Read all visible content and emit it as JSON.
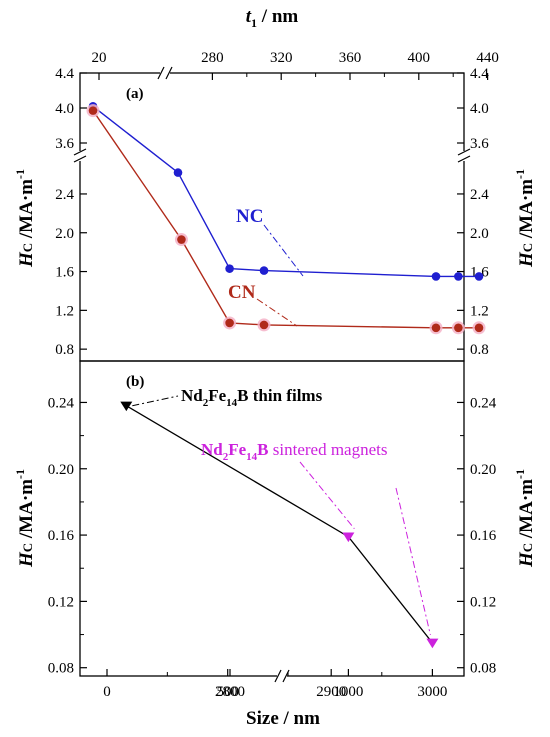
{
  "chart_data": [
    {
      "panel_label": "(a)",
      "type": "line",
      "top_axis": {
        "label_main": "t",
        "label_sub": "1",
        "label_rest": " / nm",
        "ticks": [
          "20",
          "280",
          "320",
          "360",
          "400",
          "440"
        ]
      },
      "y_axis": {
        "label_main": "H",
        "label_sub": "C",
        "label_rest": " /MA·m",
        "label_sup": "-1",
        "ticks_upper": [
          "4.4",
          "4.0",
          "3.6"
        ],
        "ticks_lower": [
          "2.4",
          "2.0",
          "1.6",
          "1.2",
          "0.8"
        ],
        "range_lower": [
          0.7,
          2.75
        ],
        "range_upper": [
          3.45,
          4.4
        ]
      },
      "series": [
        {
          "name": "NC",
          "color": "#1f1fd0",
          "points": [
            {
              "x": 0,
              "y": 4.02
            },
            {
              "x": 260,
              "y": 2.62
            },
            {
              "x": 290,
              "y": 1.63
            },
            {
              "x": 310,
              "y": 1.61
            },
            {
              "x": 410,
              "y": 1.55
            },
            {
              "x": 423,
              "y": 1.55
            },
            {
              "x": 435,
              "y": 1.55
            }
          ]
        },
        {
          "name": "CN",
          "color": "#b02a1a",
          "points": [
            {
              "x": 0,
              "y": 3.97
            },
            {
              "x": 262,
              "y": 1.93
            },
            {
              "x": 290,
              "y": 1.07
            },
            {
              "x": 310,
              "y": 1.05
            },
            {
              "x": 410,
              "y": 1.02
            },
            {
              "x": 423,
              "y": 1.02
            },
            {
              "x": 435,
              "y": 1.02
            }
          ]
        }
      ]
    },
    {
      "panel_label": "(b)",
      "type": "line",
      "x_axis": {
        "label": "Size / nm",
        "ticks": [
          "0",
          "500",
          "1000",
          "2800",
          "2900",
          "3000"
        ]
      },
      "y_axis": {
        "label_main": "H",
        "label_sub": "C",
        "label_rest": " /MA·m",
        "label_sup": "-1",
        "ticks": [
          "0.24",
          "0.20",
          "0.16",
          "0.12",
          "0.08"
        ],
        "range": [
          0.075,
          0.265
        ]
      },
      "series": [
        {
          "name": "Nd2Fe14B thin films",
          "label_parts": [
            "Nd",
            "2",
            "Fe",
            "14",
            "B thin films"
          ],
          "color": "#000000",
          "marker": "triangle-down",
          "points": [
            {
              "x": 80,
              "y": 0.238
            }
          ]
        },
        {
          "name": "Nd2Fe14B sintered magnets",
          "label_parts": [
            "Nd",
            "2",
            "Fe",
            "14",
            "B",
            " sintered magnets"
          ],
          "color": "#cc22dd",
          "marker": "triangle-down",
          "points": [
            {
              "x": 1000,
              "y": 0.159
            },
            {
              "x": 3000,
              "y": 0.095
            }
          ]
        }
      ]
    }
  ]
}
